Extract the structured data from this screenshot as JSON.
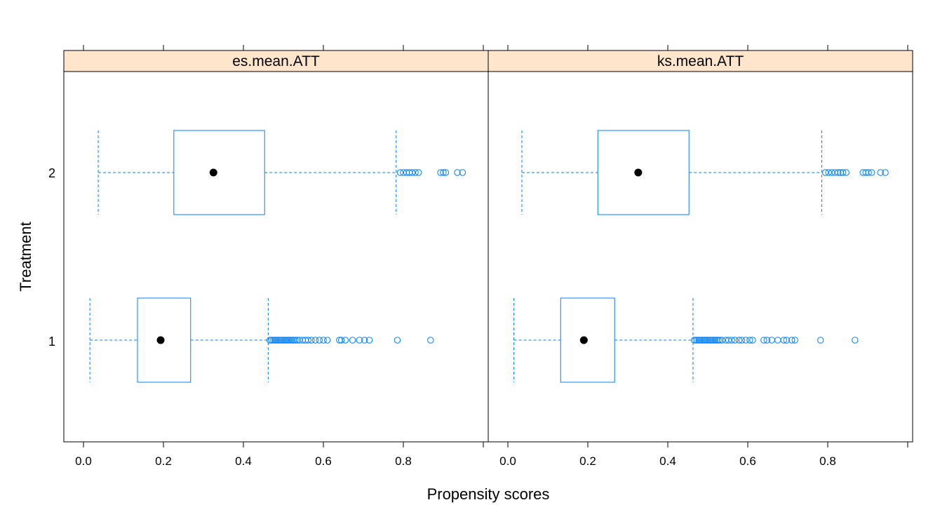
{
  "chart_data": {
    "type": "box",
    "xlabel": "Propensity scores",
    "ylabel": "Treatment",
    "categories": [
      "1",
      "2"
    ],
    "xlim": [
      -0.05,
      0.95
    ],
    "x_ticks": [
      "0.0",
      "0.2",
      "0.4",
      "0.6",
      "0.8"
    ],
    "colors": {
      "box": "#0080ff",
      "strip": "#ffe5cc",
      "median": "#000000",
      "frame": "#000000"
    },
    "panels": [
      {
        "name": "es.mean.ATT",
        "boxes": [
          {
            "category": "1",
            "whisker_low": 0.016,
            "q1": 0.135,
            "median": 0.193,
            "q3": 0.268,
            "whisker_high": 0.462,
            "outliers": [
              0.466,
              0.47,
              0.474,
              0.478,
              0.482,
              0.486,
              0.49,
              0.494,
              0.498,
              0.502,
              0.506,
              0.51,
              0.514,
              0.518,
              0.522,
              0.526,
              0.53,
              0.535,
              0.54,
              0.548,
              0.555,
              0.562,
              0.57,
              0.58,
              0.59,
              0.6,
              0.61,
              0.64,
              0.645,
              0.655,
              0.673,
              0.69,
              0.703,
              0.715,
              0.785,
              0.868
            ]
          },
          {
            "category": "2",
            "whisker_low": 0.037,
            "q1": 0.226,
            "median": 0.325,
            "q3": 0.453,
            "whisker_high": 0.782,
            "outliers": [
              0.792,
              0.8,
              0.808,
              0.815,
              0.822,
              0.83,
              0.838,
              0.893,
              0.9,
              0.906,
              0.935,
              0.948
            ]
          }
        ]
      },
      {
        "name": "ks.mean.ATT",
        "boxes": [
          {
            "category": "1",
            "whisker_low": 0.015,
            "q1": 0.132,
            "median": 0.19,
            "q3": 0.267,
            "whisker_high": 0.463,
            "outliers": [
              0.466,
              0.47,
              0.474,
              0.478,
              0.482,
              0.486,
              0.49,
              0.494,
              0.498,
              0.502,
              0.506,
              0.51,
              0.514,
              0.518,
              0.522,
              0.526,
              0.53,
              0.536,
              0.545,
              0.552,
              0.56,
              0.568,
              0.578,
              0.585,
              0.595,
              0.605,
              0.612,
              0.64,
              0.648,
              0.66,
              0.675,
              0.69,
              0.697,
              0.71,
              0.718,
              0.782,
              0.868
            ]
          },
          {
            "category": "2",
            "whisker_low": 0.035,
            "q1": 0.225,
            "median": 0.326,
            "q3": 0.453,
            "whisker_high": 0.785,
            "outliers": [
              0.794,
              0.802,
              0.81,
              0.818,
              0.826,
              0.832,
              0.838,
              0.846,
              0.888,
              0.895,
              0.902,
              0.91,
              0.932,
              0.944
            ]
          }
        ]
      }
    ]
  }
}
